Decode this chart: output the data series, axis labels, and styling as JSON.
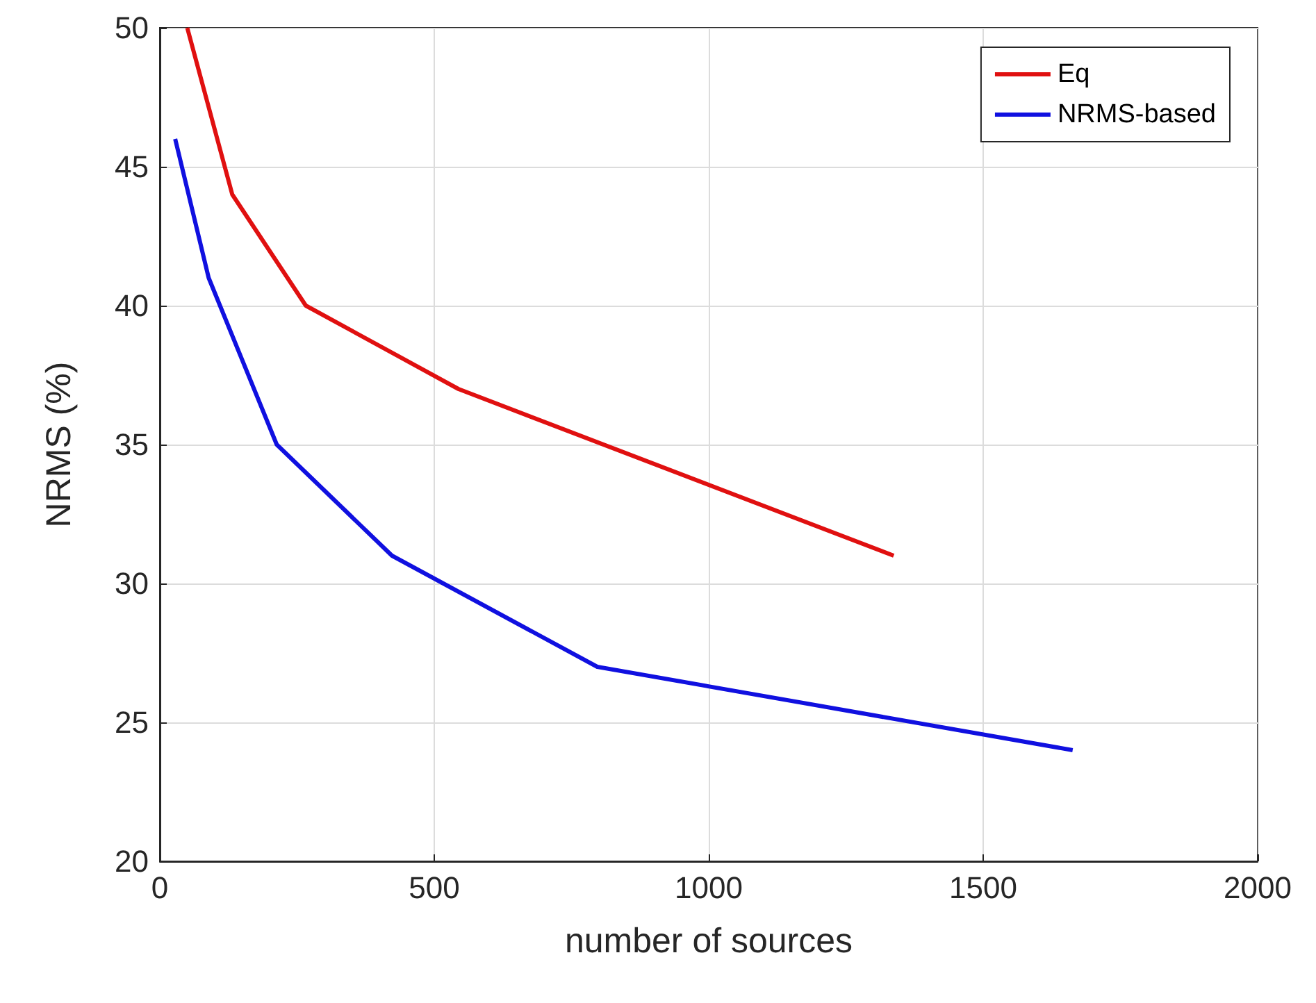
{
  "chart_data": {
    "type": "line",
    "xlabel": "number of sources",
    "ylabel": "NRMS (%)",
    "xlim": [
      0,
      2000
    ],
    "xticks": [
      0,
      500,
      1000,
      1500,
      2000
    ],
    "ylim": [
      20,
      50
    ],
    "yticks": [
      20,
      25,
      30,
      35,
      40,
      45,
      50
    ],
    "grid": true,
    "legend": "top right",
    "marker": "none",
    "line_style": "solid",
    "series": [
      {
        "name": "Eq",
        "color": "#e01010",
        "x": [
          50,
          132,
          266,
          544,
          1337
        ],
        "values": [
          50,
          44,
          40,
          37,
          31
        ]
      },
      {
        "name": "NRMS-based",
        "color": "#1010e0",
        "x": [
          28,
          89,
          213,
          423,
          797,
          1663
        ],
        "values": [
          46,
          41,
          35,
          31,
          27,
          24
        ]
      }
    ]
  }
}
